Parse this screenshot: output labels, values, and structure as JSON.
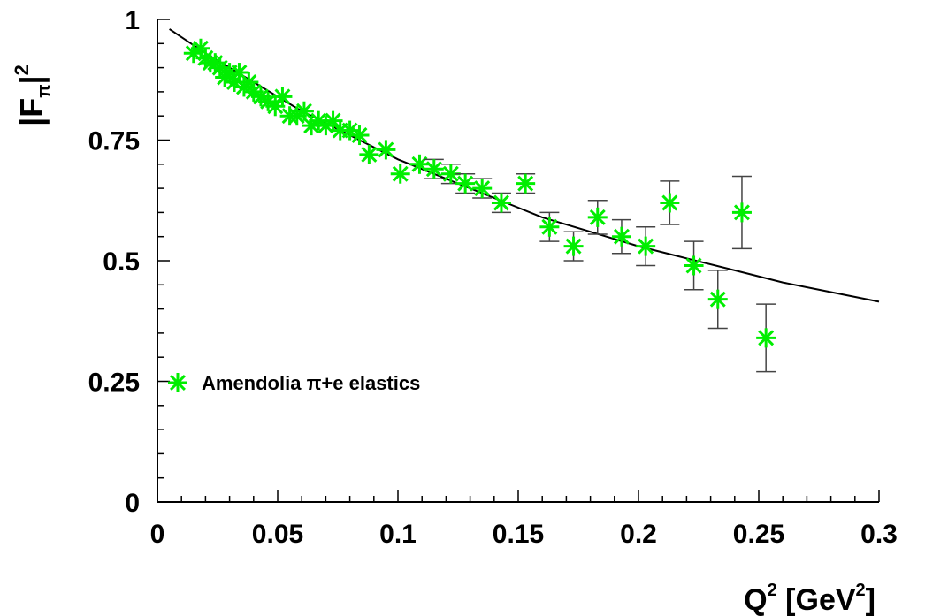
{
  "chart_data": {
    "type": "scatter",
    "title": "",
    "xlabel": {
      "base": "Q",
      "sup": "2",
      "unit_open": " [GeV",
      "unit_sup": "2",
      "unit_close": "]"
    },
    "ylabel": {
      "open": "|F",
      "sub": "π",
      "close": "|",
      "sup": "2"
    },
    "xlim": [
      0,
      0.3
    ],
    "ylim": [
      0,
      1
    ],
    "x_ticks": [
      "0",
      "0.05",
      "0.1",
      "0.15",
      "0.2",
      "0.25",
      "0.3"
    ],
    "x_tick_values": [
      0,
      0.05,
      0.1,
      0.15,
      0.2,
      0.25,
      0.3
    ],
    "y_ticks": [
      "0",
      "0.25",
      "0.5",
      "0.75",
      "1"
    ],
    "y_tick_values": [
      0,
      0.25,
      0.5,
      0.75,
      1
    ],
    "legend": {
      "placement": "left",
      "label": "Amendolia π+e elastics"
    },
    "colors": {
      "marker": "#00ee00",
      "curve": "#000000",
      "error_bar": "#444444"
    },
    "grid": false,
    "series": [
      {
        "name": "Amendolia π+e elastics",
        "marker": "asterisk",
        "points": [
          {
            "x": 0.015,
            "y": 0.93
          },
          {
            "x": 0.018,
            "y": 0.94
          },
          {
            "x": 0.02,
            "y": 0.92
          },
          {
            "x": 0.022,
            "y": 0.91
          },
          {
            "x": 0.024,
            "y": 0.91
          },
          {
            "x": 0.026,
            "y": 0.9
          },
          {
            "x": 0.028,
            "y": 0.88
          },
          {
            "x": 0.03,
            "y": 0.89
          },
          {
            "x": 0.032,
            "y": 0.87
          },
          {
            "x": 0.034,
            "y": 0.89
          },
          {
            "x": 0.036,
            "y": 0.86
          },
          {
            "x": 0.038,
            "y": 0.87
          },
          {
            "x": 0.04,
            "y": 0.85
          },
          {
            "x": 0.043,
            "y": 0.84
          },
          {
            "x": 0.046,
            "y": 0.83
          },
          {
            "x": 0.049,
            "y": 0.82
          },
          {
            "x": 0.052,
            "y": 0.84
          },
          {
            "x": 0.055,
            "y": 0.8
          },
          {
            "x": 0.058,
            "y": 0.8
          },
          {
            "x": 0.061,
            "y": 0.81
          },
          {
            "x": 0.064,
            "y": 0.78
          },
          {
            "x": 0.067,
            "y": 0.79
          },
          {
            "x": 0.07,
            "y": 0.78
          },
          {
            "x": 0.073,
            "y": 0.79
          },
          {
            "x": 0.076,
            "y": 0.77
          },
          {
            "x": 0.08,
            "y": 0.77
          },
          {
            "x": 0.084,
            "y": 0.76
          },
          {
            "x": 0.088,
            "y": 0.72
          },
          {
            "x": 0.095,
            "y": 0.73
          },
          {
            "x": 0.101,
            "y": 0.68
          },
          {
            "x": 0.109,
            "y": 0.7
          },
          {
            "x": 0.115,
            "y": 0.69,
            "err": 0.02
          },
          {
            "x": 0.122,
            "y": 0.68,
            "err": 0.02
          },
          {
            "x": 0.128,
            "y": 0.66,
            "err": 0.02
          },
          {
            "x": 0.135,
            "y": 0.65,
            "err": 0.02
          },
          {
            "x": 0.143,
            "y": 0.62,
            "err": 0.02
          },
          {
            "x": 0.153,
            "y": 0.66,
            "err": 0.02
          },
          {
            "x": 0.163,
            "y": 0.57,
            "err": 0.03
          },
          {
            "x": 0.173,
            "y": 0.53,
            "err": 0.03
          },
          {
            "x": 0.183,
            "y": 0.59,
            "err": 0.035
          },
          {
            "x": 0.193,
            "y": 0.55,
            "err": 0.035
          },
          {
            "x": 0.203,
            "y": 0.53,
            "err": 0.04
          },
          {
            "x": 0.213,
            "y": 0.62,
            "err": 0.045
          },
          {
            "x": 0.223,
            "y": 0.49,
            "err": 0.05
          },
          {
            "x": 0.233,
            "y": 0.42,
            "err": 0.06
          },
          {
            "x": 0.243,
            "y": 0.6,
            "err": 0.075
          },
          {
            "x": 0.253,
            "y": 0.34,
            "err": 0.07
          }
        ]
      },
      {
        "name": "",
        "style": "line",
        "points": [
          {
            "x": 0.005,
            "y": 0.98
          },
          {
            "x": 0.02,
            "y": 0.93
          },
          {
            "x": 0.04,
            "y": 0.87
          },
          {
            "x": 0.06,
            "y": 0.81
          },
          {
            "x": 0.08,
            "y": 0.76
          },
          {
            "x": 0.1,
            "y": 0.71
          },
          {
            "x": 0.12,
            "y": 0.67
          },
          {
            "x": 0.14,
            "y": 0.63
          },
          {
            "x": 0.16,
            "y": 0.59
          },
          {
            "x": 0.18,
            "y": 0.56
          },
          {
            "x": 0.2,
            "y": 0.53
          },
          {
            "x": 0.22,
            "y": 0.505
          },
          {
            "x": 0.24,
            "y": 0.48
          },
          {
            "x": 0.26,
            "y": 0.455
          },
          {
            "x": 0.28,
            "y": 0.435
          },
          {
            "x": 0.3,
            "y": 0.415
          }
        ]
      }
    ]
  }
}
